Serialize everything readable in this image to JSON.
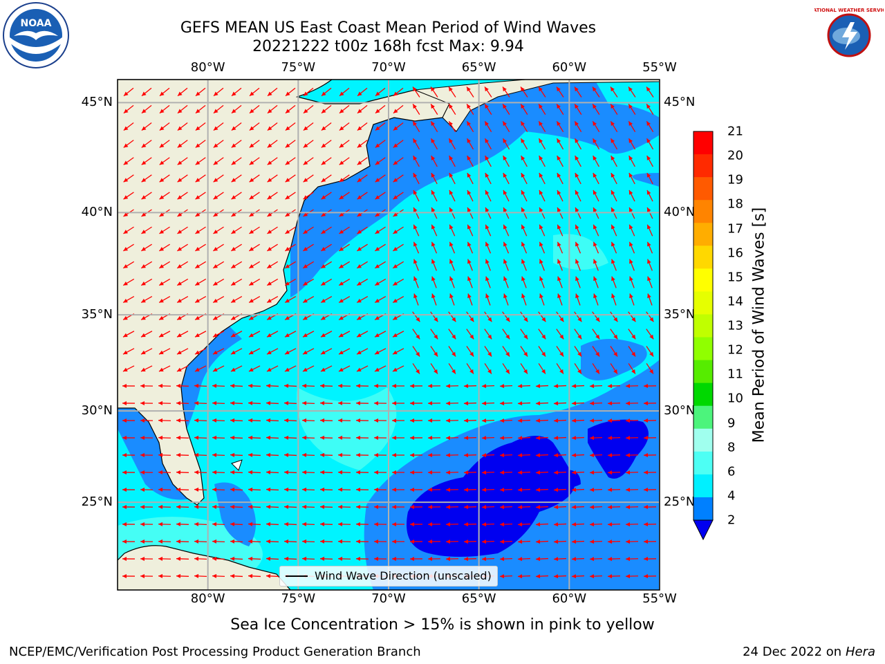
{
  "title": {
    "line1": "GEFS MEAN US East Coast Mean Period of Wind Waves",
    "line2": "20221222 t00z 168h fcst   Max: 9.94"
  },
  "logos": {
    "left": "NOAA",
    "right": "NATIONAL WEATHER SERVICE"
  },
  "map": {
    "lon_ticks": [
      "80°W",
      "75°W",
      "70°W",
      "65°W",
      "60°W",
      "55°W"
    ],
    "lat_ticks": [
      "45°N",
      "40°N",
      "35°N",
      "30°N",
      "25°N"
    ],
    "lon_range": [
      -85,
      -55
    ],
    "lat_range": [
      20,
      46
    ],
    "legend_label": "Wind Wave Direction (unscaled)",
    "land_color": "#efefdc",
    "arrow_color": "#ff0000"
  },
  "colorbar": {
    "label": "Mean Period of Wind Waves [s]",
    "ticks": [
      "21",
      "20",
      "19",
      "18",
      "17",
      "16",
      "15",
      "14",
      "13",
      "12",
      "11",
      "10",
      "9",
      "8",
      "6",
      "4",
      "2"
    ],
    "colors": [
      "#ff0000",
      "#ff2a00",
      "#ff5a00",
      "#ff8400",
      "#ffad00",
      "#ffd800",
      "#ffff00",
      "#e6ff00",
      "#c0ff00",
      "#90ff00",
      "#56ec00",
      "#00d800",
      "#4cf47c",
      "#a0ffee",
      "#4dfff4",
      "#00f0ff",
      "#0080ff",
      "#0000f0"
    ]
  },
  "note": "Sea Ice Concentration > 15% is shown in pink to yellow",
  "footer": {
    "left": "NCEP/EMC/Verification Post Processing Product Generation Branch",
    "right_date": "24 Dec 2022 on",
    "right_host": "Hera"
  }
}
